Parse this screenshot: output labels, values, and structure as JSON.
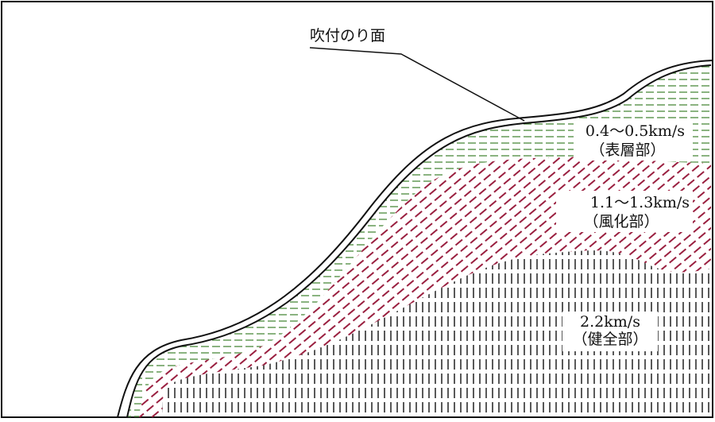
{
  "callout": {
    "label": "吹付のり面"
  },
  "layers": [
    {
      "velocity": "0.4～0.5km/s",
      "name": "（表層部）"
    },
    {
      "velocity": "1.1～1.3km/s",
      "name": "（風化部）"
    },
    {
      "velocity": "2.2km/s",
      "name": "（健全部）"
    }
  ]
}
